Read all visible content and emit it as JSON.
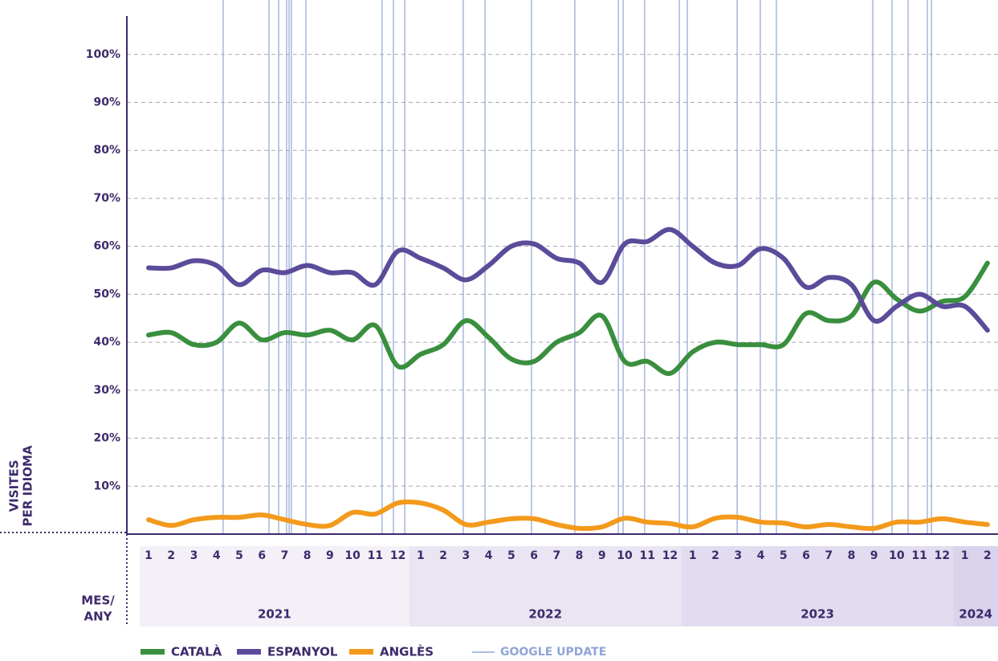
{
  "chart_data": {
    "type": "line",
    "y_label": [
      "VISITES",
      "PER IDIOMA"
    ],
    "x_label": [
      "MES/",
      "ANY"
    ],
    "categories": [
      "1",
      "2",
      "3",
      "4",
      "5",
      "6",
      "7",
      "8",
      "9",
      "10",
      "11",
      "12",
      "1",
      "2",
      "3",
      "4",
      "5",
      "6",
      "7",
      "8",
      "9",
      "10",
      "11",
      "12",
      "1",
      "2",
      "3",
      "4",
      "5",
      "6",
      "7",
      "8",
      "9",
      "10",
      "11",
      "12",
      "1",
      "2"
    ],
    "groups": [
      {
        "label": "2021",
        "size": 12
      },
      {
        "label": "2022",
        "size": 12
      },
      {
        "label": "2023",
        "size": 12
      },
      {
        "label": "2024",
        "size": 2
      }
    ],
    "series": [
      {
        "name": "CATALÀ",
        "color": "#3a8f3f",
        "values": [
          41.5,
          42,
          39.5,
          40,
          44,
          40.5,
          42,
          41.5,
          42.5,
          40.5,
          43.5,
          35,
          37.5,
          39.5,
          44.5,
          41,
          36.5,
          36,
          40,
          42,
          45.5,
          36,
          36,
          33.5,
          38,
          40,
          39.5,
          39.5,
          39.5,
          46,
          44.5,
          45.5,
          52.5,
          49,
          46.5,
          48.5,
          49.5,
          56.5
        ]
      },
      {
        "name": "ESPANYOL",
        "color": "#5b4b9a",
        "values": [
          55.5,
          55.5,
          57,
          56,
          52,
          55,
          54.5,
          56,
          54.5,
          54.5,
          52,
          59,
          57.5,
          55.5,
          53,
          56,
          60,
          60.5,
          57.5,
          56.5,
          52.5,
          60.5,
          61,
          63.5,
          60,
          56.5,
          56,
          59.5,
          57.5,
          51.5,
          53.5,
          52,
          44.5,
          47.5,
          50,
          47.5,
          47.5,
          42.5
        ]
      },
      {
        "name": "ANGLÈS",
        "color": "#f39a1c",
        "values": [
          3,
          1.8,
          3,
          3.5,
          3.5,
          4,
          3,
          2,
          1.8,
          4.5,
          4.2,
          6.5,
          6.5,
          5,
          2,
          2.5,
          3.2,
          3.2,
          2,
          1.2,
          1.5,
          3.3,
          2.5,
          2.2,
          1.5,
          3.3,
          3.5,
          2.5,
          2.3,
          1.5,
          2,
          1.5,
          1.2,
          2.5,
          2.5,
          3.2,
          2.5,
          2
        ]
      }
    ],
    "google_update_label": "GOOGLE UPDATE",
    "google_update_color": "#8fa4d6",
    "google_updates": [
      3.29,
      5.31,
      5.74,
      6.09,
      6.2,
      6.3,
      6.94,
      10.3,
      10.8,
      11.3,
      13.88,
      14.84,
      16.89,
      18.8,
      20.72,
      20.93,
      21.88,
      23.41,
      23.76,
      25.96,
      26.98,
      27.69,
      31.94,
      32.79,
      33.5,
      34.35,
      34.53
    ],
    "ylim": [
      0,
      108
    ],
    "yticks": [
      {
        "value": 10,
        "label": "10%"
      },
      {
        "value": 20,
        "label": "20%"
      },
      {
        "value": 30,
        "label": "30%"
      },
      {
        "value": 40,
        "label": "40%"
      },
      {
        "value": 50,
        "label": "50%"
      },
      {
        "value": 60,
        "label": "60%"
      },
      {
        "value": 70,
        "label": "70%"
      },
      {
        "value": 80,
        "label": "80%"
      },
      {
        "value": 90,
        "label": "90%"
      },
      {
        "value": 100,
        "label": "100%"
      }
    ],
    "grid": true
  }
}
